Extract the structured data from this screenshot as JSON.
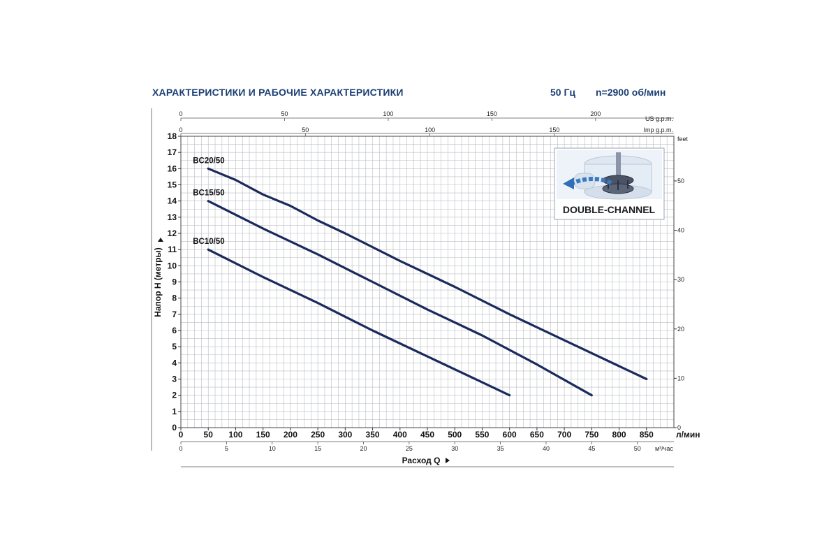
{
  "header": {
    "title": "ХАРАКТЕРИСТИКИ И РАБОЧИЕ ХАРАКТЕРИСТИКИ",
    "frequency": "50 Гц",
    "speed": "n=2900 об/мин"
  },
  "inset": {
    "label": "DOUBLE-CHANNEL"
  },
  "chart_data": {
    "type": "line",
    "xlabel": "Расход Q",
    "ylabel": "Напор H (метры)",
    "x_unit": "л/мин",
    "x_unit_m3": "м³/час",
    "top_axis_us_unit": "US g.p.m.",
    "top_axis_imp_unit": "Imp g.p.m.",
    "right_axis_unit": "feet",
    "xlim": [
      0,
      900
    ],
    "ylim": [
      0,
      18
    ],
    "grid": true,
    "x_ticks": [
      0,
      50,
      100,
      150,
      200,
      250,
      300,
      350,
      400,
      450,
      500,
      550,
      600,
      650,
      700,
      750,
      800,
      850
    ],
    "y_ticks": [
      0,
      1,
      2,
      3,
      4,
      5,
      6,
      7,
      8,
      9,
      10,
      11,
      12,
      13,
      14,
      15,
      16,
      17,
      18
    ],
    "m3h_ticks": [
      0,
      5,
      10,
      15,
      20,
      25,
      30,
      35,
      40,
      45,
      50
    ],
    "us_gpm_ticks": [
      0,
      50,
      100,
      150,
      200
    ],
    "imp_gpm_ticks": [
      0,
      50,
      100,
      150
    ],
    "feet_ticks": [
      0,
      10,
      20,
      30,
      40,
      50
    ],
    "series": [
      {
        "name": "BC20/50",
        "color": "#1a2a5c",
        "x": [
          50,
          100,
          150,
          200,
          250,
          300,
          400,
          500,
          600,
          700,
          800,
          850
        ],
        "y": [
          16.0,
          15.3,
          14.4,
          13.7,
          12.8,
          12.0,
          10.3,
          8.7,
          7.0,
          5.4,
          3.8,
          3.0
        ]
      },
      {
        "name": "BC15/50",
        "color": "#1a2a5c",
        "x": [
          50,
          150,
          250,
          350,
          450,
          550,
          650,
          750
        ],
        "y": [
          14.0,
          12.3,
          10.7,
          9.0,
          7.3,
          5.7,
          3.9,
          2.0
        ]
      },
      {
        "name": "BC10/50",
        "color": "#1a2a5c",
        "x": [
          50,
          150,
          250,
          350,
          450,
          550,
          600
        ],
        "y": [
          11.0,
          9.3,
          7.7,
          6.0,
          4.4,
          2.8,
          2.0
        ]
      }
    ]
  }
}
